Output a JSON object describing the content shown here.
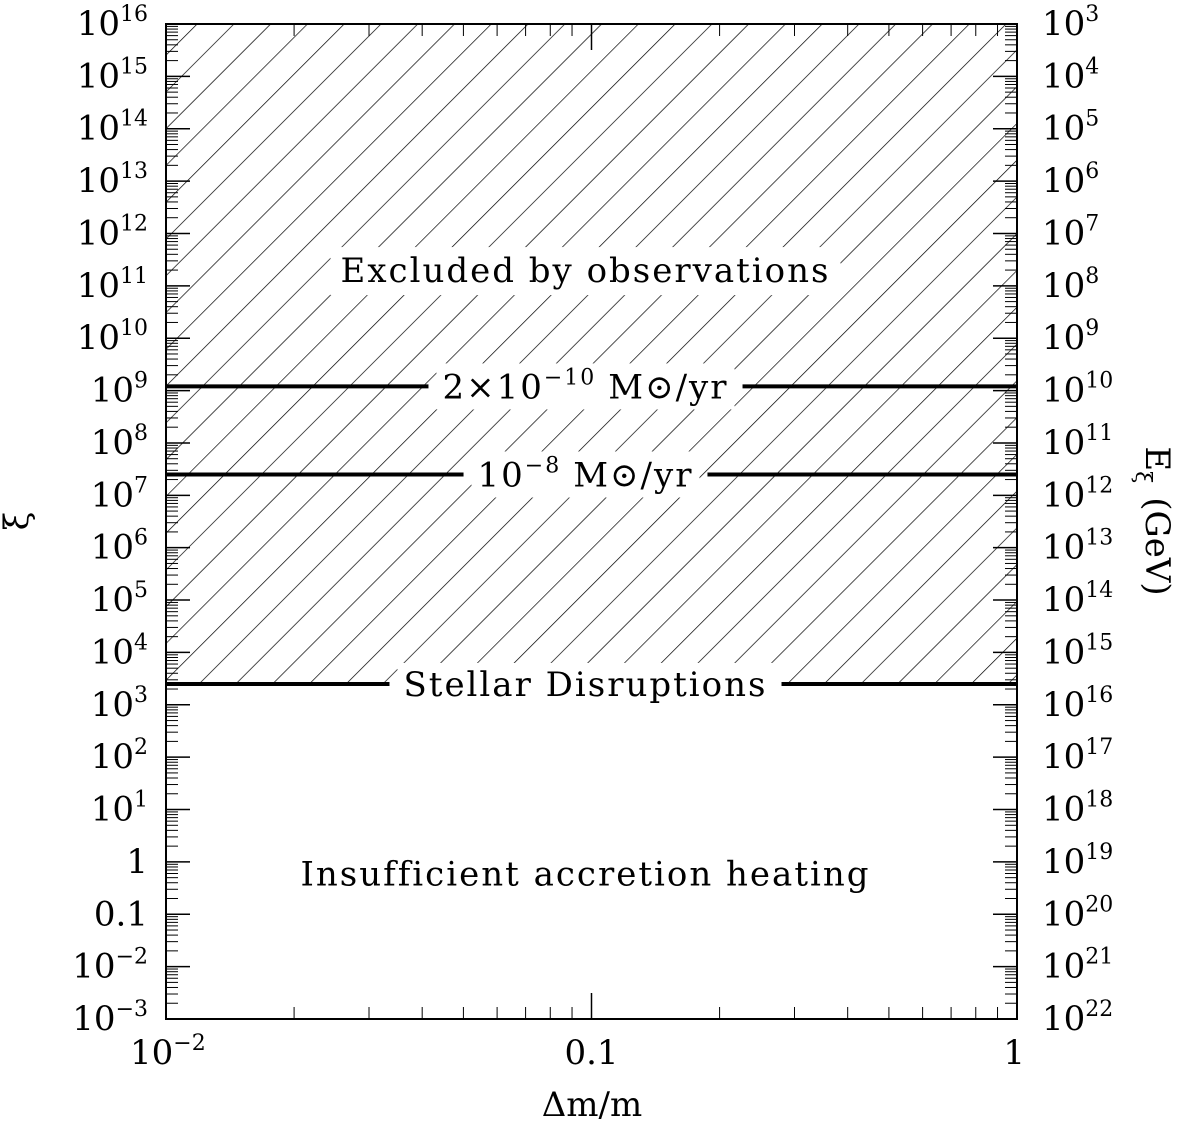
{
  "chart_data": {
    "type": "line",
    "xlabel": "Δm/m",
    "ylabel": "ξ",
    "y2label_main": "E",
    "y2label_sub": "ξ",
    "y2label_unit": "(GeV)",
    "xscale": "log",
    "yscale": "log",
    "xlim": [
      0.01,
      1
    ],
    "ylim": [
      0.001,
      1e+16
    ],
    "grid": false,
    "x_ticks": [
      {
        "value": 0.01,
        "base": "10",
        "exp": "−2"
      },
      {
        "value": 0.1,
        "base": "0.1",
        "exp": ""
      },
      {
        "value": 1,
        "base": "1",
        "exp": ""
      }
    ],
    "y_ticks": [
      {
        "value": 0.001,
        "base": "10",
        "exp": "−3"
      },
      {
        "value": 0.01,
        "base": "10",
        "exp": "−2"
      },
      {
        "value": 0.1,
        "base": "0.1",
        "exp": ""
      },
      {
        "value": 1,
        "base": "1",
        "exp": ""
      },
      {
        "value": 10,
        "base": "10",
        "exp": "1"
      },
      {
        "value": 100,
        "base": "10",
        "exp": "2"
      },
      {
        "value": 1000,
        "base": "10",
        "exp": "3"
      },
      {
        "value": 10000,
        "base": "10",
        "exp": "4"
      },
      {
        "value": 100000,
        "base": "10",
        "exp": "5"
      },
      {
        "value": 1000000,
        "base": "10",
        "exp": "6"
      },
      {
        "value": 10000000,
        "base": "10",
        "exp": "7"
      },
      {
        "value": 100000000,
        "base": "10",
        "exp": "8"
      },
      {
        "value": 1000000000,
        "base": "10",
        "exp": "9"
      },
      {
        "value": 10000000000,
        "base": "10",
        "exp": "10"
      },
      {
        "value": 100000000000,
        "base": "10",
        "exp": "11"
      },
      {
        "value": 1000000000000,
        "base": "10",
        "exp": "12"
      },
      {
        "value": 10000000000000,
        "base": "10",
        "exp": "13"
      },
      {
        "value": 100000000000000,
        "base": "10",
        "exp": "14"
      },
      {
        "value": 1000000000000000,
        "base": "10",
        "exp": "15"
      },
      {
        "value": 10000000000000000,
        "base": "10",
        "exp": "16"
      }
    ],
    "y2_ticks": [
      {
        "value": 0.001,
        "base": "10",
        "exp": "22"
      },
      {
        "value": 0.01,
        "base": "10",
        "exp": "21"
      },
      {
        "value": 0.1,
        "base": "10",
        "exp": "20"
      },
      {
        "value": 1,
        "base": "10",
        "exp": "19"
      },
      {
        "value": 10,
        "base": "10",
        "exp": "18"
      },
      {
        "value": 100,
        "base": "10",
        "exp": "17"
      },
      {
        "value": 1000,
        "base": "10",
        "exp": "16"
      },
      {
        "value": 10000,
        "base": "10",
        "exp": "15"
      },
      {
        "value": 100000,
        "base": "10",
        "exp": "14"
      },
      {
        "value": 1000000,
        "base": "10",
        "exp": "13"
      },
      {
        "value": 10000000,
        "base": "10",
        "exp": "12"
      },
      {
        "value": 100000000,
        "base": "10",
        "exp": "11"
      },
      {
        "value": 1000000000,
        "base": "10",
        "exp": "10"
      },
      {
        "value": 10000000000,
        "base": "10",
        "exp": "9"
      },
      {
        "value": 100000000000,
        "base": "10",
        "exp": "8"
      },
      {
        "value": 1000000000000,
        "base": "10",
        "exp": "7"
      },
      {
        "value": 10000000000000,
        "base": "10",
        "exp": "6"
      },
      {
        "value": 100000000000000,
        "base": "10",
        "exp": "5"
      },
      {
        "value": 1000000000000000,
        "base": "10",
        "exp": "4"
      },
      {
        "value": 10000000000000000,
        "base": "10",
        "exp": "3"
      }
    ],
    "excluded_region": {
      "y_from": 2500,
      "y_to": 1e+16,
      "pattern": "hatched"
    },
    "series": [
      {
        "label_base": "2×10",
        "label_exp": "−10",
        "label_unit": "M⊙/yr",
        "y": 1200000000.0,
        "x": [
          0.01,
          1
        ]
      },
      {
        "label_base": "10",
        "label_exp": "−8",
        "label_unit": "M⊙/yr",
        "y": 25000000.0,
        "x": [
          0.01,
          1
        ]
      },
      {
        "label_base": "Stellar Disruptions",
        "label_exp": "",
        "label_unit": "",
        "y": 2500,
        "x": [
          0.01,
          1
        ]
      }
    ],
    "annotations": [
      {
        "text": "Excluded by observations",
        "x": 0.1,
        "y": 200000000000.0
      },
      {
        "text": "Insufficient accretion heating",
        "x": 0.1,
        "y": 0.6
      }
    ]
  }
}
